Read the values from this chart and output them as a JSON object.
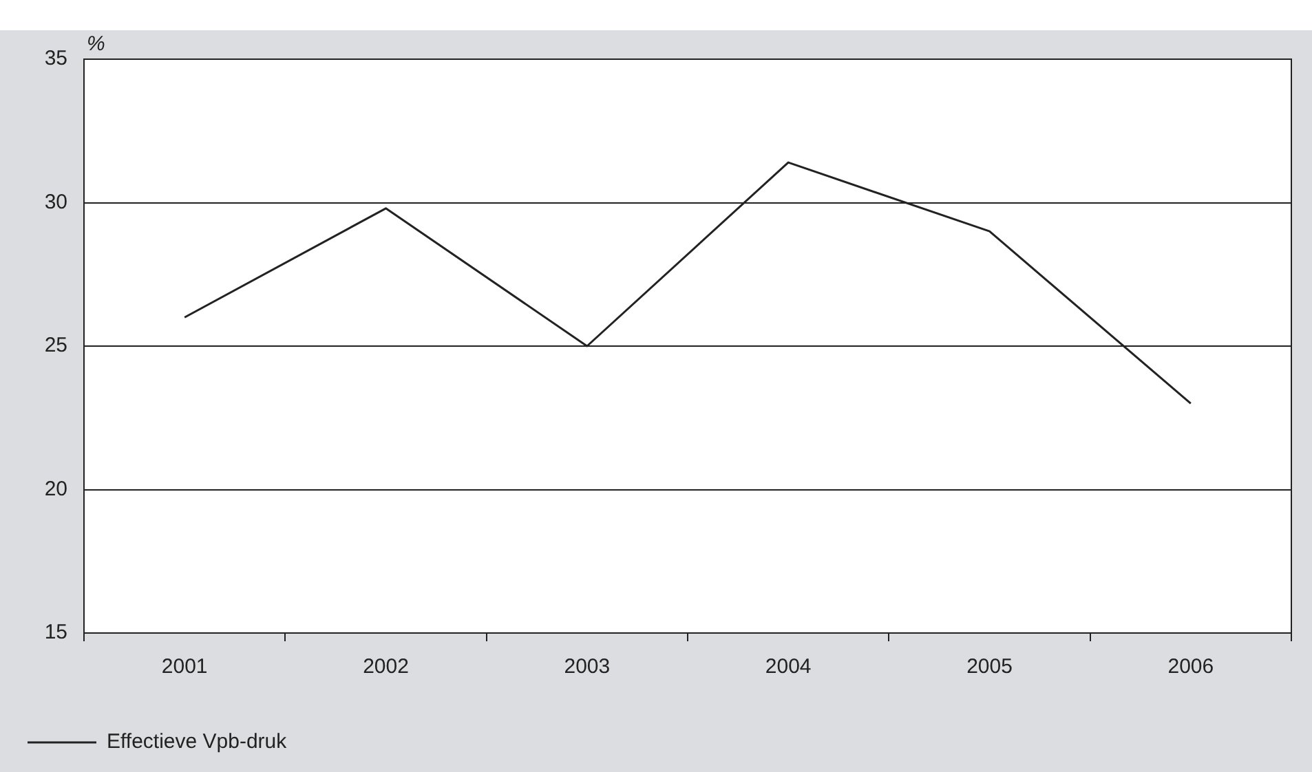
{
  "chart_data": {
    "type": "line",
    "ylabel": "%",
    "categories": [
      "2001",
      "2002",
      "2003",
      "2004",
      "2005",
      "2006"
    ],
    "series": [
      {
        "name": "Effectieve Vpb-druk",
        "color": "#222222",
        "values": [
          26.0,
          29.8,
          25.0,
          31.4,
          29.0,
          23.0
        ]
      }
    ],
    "ylim": [
      15,
      35
    ],
    "yticks": [
      15,
      20,
      25,
      30,
      35
    ],
    "grid": "y",
    "legend": "bottom left"
  }
}
